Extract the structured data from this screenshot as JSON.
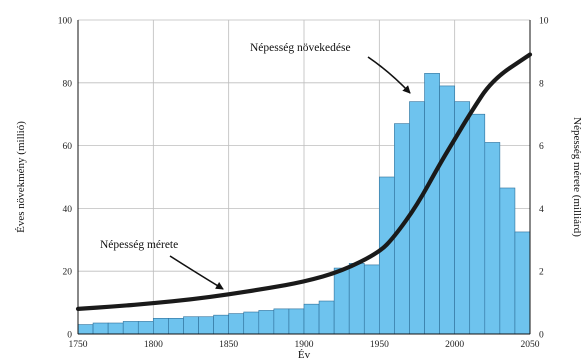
{
  "chart_data": {
    "type": "bar",
    "title": "",
    "xlabel": "Év",
    "ylabel_left": "Éves növekmény (millió)",
    "ylabel_right": "Népesség mérete (milliárd)",
    "xlim": [
      1750,
      2050
    ],
    "ylim_left": [
      0,
      100
    ],
    "ylim_right": [
      0,
      10
    ],
    "x_ticks": [
      1750,
      1800,
      1850,
      1900,
      1950,
      2000,
      2050
    ],
    "y_ticks_left": [
      0,
      20,
      40,
      60,
      80,
      100
    ],
    "y_ticks_right": [
      0,
      2,
      4,
      6,
      8,
      10
    ],
    "grid": true,
    "bar_color": "#6ec3ee",
    "line_color": "#1a1a1a",
    "bin_width": 10,
    "bars": {
      "name": "Éves növekmény",
      "x_start": [
        1750,
        1760,
        1770,
        1780,
        1790,
        1800,
        1810,
        1820,
        1830,
        1840,
        1850,
        1860,
        1870,
        1880,
        1890,
        1900,
        1910,
        1920,
        1930,
        1940,
        1950,
        1960,
        1970,
        1980,
        1990,
        2000,
        2010,
        2020,
        2030,
        2040
      ],
      "values": [
        3,
        3.5,
        3.5,
        4,
        4,
        5,
        5,
        5.5,
        5.5,
        6,
        6.5,
        7,
        7.5,
        8,
        8,
        9.5,
        10.5,
        21,
        22.5,
        22,
        50,
        67,
        74,
        83,
        79,
        74,
        70,
        61,
        46.5,
        32.5
      ]
    },
    "line": {
      "name": "Népesség mérete",
      "x": [
        1750,
        1775,
        1800,
        1825,
        1850,
        1875,
        1900,
        1925,
        1950,
        1960,
        1975,
        1990,
        2000,
        2010,
        2025,
        2050
      ],
      "y": [
        0.8,
        0.88,
        0.98,
        1.1,
        1.26,
        1.45,
        1.66,
        2.0,
        2.6,
        3.1,
        4.1,
        5.4,
        6.2,
        7.0,
        8.1,
        8.9
      ]
    },
    "annotations": [
      {
        "text": "Népesség növekedése",
        "points_to": {
          "x": 1985,
          "y_right": 7.5
        }
      },
      {
        "text": "Népesség mérete",
        "points_to": {
          "x": 1870,
          "y_right": 1.45
        }
      }
    ]
  }
}
